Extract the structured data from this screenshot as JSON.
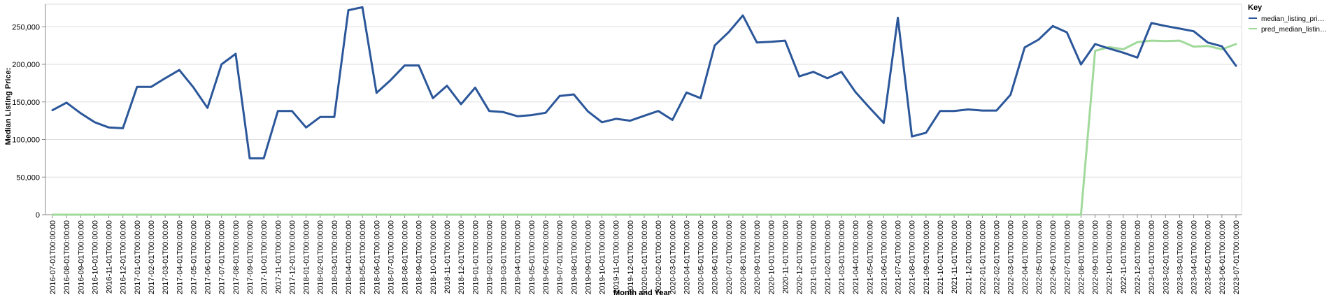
{
  "chart_data": {
    "type": "line",
    "xlabel": "Month and Year",
    "ylabel": "Median Listing Price:",
    "ylim": [
      0,
      280000
    ],
    "yticks": [
      0,
      50000,
      100000,
      150000,
      200000,
      250000
    ],
    "ytick_labels": [
      "0",
      "50,000",
      "100,000",
      "150,000",
      "200,000",
      "250,000"
    ],
    "grid": "horizontal",
    "legend": {
      "title": "Key",
      "placement": "top-right",
      "entries": [
        "median_listing_pri…",
        "pred_median_listin…"
      ]
    },
    "x": [
      "2016-07-01T00:00:00",
      "2016-08-01T00:00:00",
      "2016-09-01T00:00:00",
      "2016-10-01T00:00:00",
      "2016-11-01T00:00:00",
      "2016-12-01T00:00:00",
      "2017-01-01T00:00:00",
      "2017-02-01T00:00:00",
      "2017-03-01T00:00:00",
      "2017-04-01T00:00:00",
      "2017-05-01T00:00:00",
      "2017-06-01T00:00:00",
      "2017-07-01T00:00:00",
      "2017-08-01T00:00:00",
      "2017-09-01T00:00:00",
      "2017-10-01T00:00:00",
      "2017-11-01T00:00:00",
      "2017-12-01T00:00:00",
      "2018-01-01T00:00:00",
      "2018-02-01T00:00:00",
      "2018-03-01T00:00:00",
      "2018-04-01T00:00:00",
      "2018-05-01T00:00:00",
      "2018-06-01T00:00:00",
      "2018-07-01T00:00:00",
      "2018-08-01T00:00:00",
      "2018-09-01T00:00:00",
      "2018-10-01T00:00:00",
      "2018-11-01T00:00:00",
      "2018-12-01T00:00:00",
      "2019-01-01T00:00:00",
      "2019-02-01T00:00:00",
      "2019-03-01T00:00:00",
      "2019-04-01T00:00:00",
      "2019-05-01T00:00:00",
      "2019-06-01T00:00:00",
      "2019-07-01T00:00:00",
      "2019-08-01T00:00:00",
      "2019-09-01T00:00:00",
      "2019-10-01T00:00:00",
      "2019-11-01T00:00:00",
      "2019-12-01T00:00:00",
      "2020-01-01T00:00:00",
      "2020-02-01T00:00:00",
      "2020-03-01T00:00:00",
      "2020-04-01T00:00:00",
      "2020-05-01T00:00:00",
      "2020-06-01T00:00:00",
      "2020-07-01T00:00:00",
      "2020-08-01T00:00:00",
      "2020-09-01T00:00:00",
      "2020-10-01T00:00:00",
      "2020-11-01T00:00:00",
      "2020-12-01T00:00:00",
      "2021-01-01T00:00:00",
      "2021-02-01T00:00:00",
      "2021-03-01T00:00:00",
      "2021-04-01T00:00:00",
      "2021-05-01T00:00:00",
      "2021-06-01T00:00:00",
      "2021-07-01T00:00:00",
      "2021-08-01T00:00:00",
      "2021-09-01T00:00:00",
      "2021-10-01T00:00:00",
      "2021-11-01T00:00:00",
      "2021-12-01T00:00:00",
      "2022-01-01T00:00:00",
      "2022-02-01T00:00:00",
      "2022-03-01T00:00:00",
      "2022-04-01T00:00:00",
      "2022-05-01T00:00:00",
      "2022-06-01T00:00:00",
      "2022-07-01T00:00:00",
      "2022-08-01T00:00:00",
      "2022-09-01T00:00:00",
      "2022-10-01T00:00:00",
      "2022-11-01T00:00:00",
      "2022-12-01T00:00:00",
      "2023-01-01T00:00:00",
      "2023-02-01T00:00:00",
      "2023-03-01T00:00:00",
      "2023-04-01T00:00:00",
      "2023-05-01T00:00:00",
      "2023-06-01T00:00:00",
      "2023-07-01T00:00:00"
    ],
    "series": [
      {
        "name": "median_listing_pri…",
        "color": "#2b579a",
        "values": [
          139000,
          149000,
          135000,
          123000,
          116000,
          115000,
          170000,
          170000,
          181500,
          192500,
          169500,
          142000,
          200000,
          214000,
          75000,
          75000,
          138000,
          138000,
          116000,
          130000,
          130000,
          272000,
          276000,
          162000,
          179000,
          198500,
          198500,
          155000,
          171500,
          147000,
          169000,
          138000,
          136500,
          131000,
          132500,
          135500,
          158000,
          160000,
          137500,
          123000,
          127500,
          125000,
          131500,
          138000,
          126000,
          162500,
          155000,
          225000,
          243000,
          265000,
          229000,
          230000,
          231500,
          184000,
          190000,
          181500,
          190000,
          163000,
          142000,
          122000,
          262000,
          104000,
          109000,
          138000,
          138000,
          140000,
          138500,
          138500,
          159500,
          222500,
          233000,
          251000,
          242500,
          199900,
          227000,
          221000,
          215500,
          209000,
          255000,
          251000,
          247500,
          244000,
          229000,
          224000,
          198000
        ]
      },
      {
        "name": "pred_median_listin…",
        "color": "#a1d99b",
        "values": [
          0,
          0,
          0,
          0,
          0,
          0,
          0,
          0,
          0,
          0,
          0,
          0,
          0,
          0,
          0,
          0,
          0,
          0,
          0,
          0,
          0,
          0,
          0,
          0,
          0,
          0,
          0,
          0,
          0,
          0,
          0,
          0,
          0,
          0,
          0,
          0,
          0,
          0,
          0,
          0,
          0,
          0,
          0,
          0,
          0,
          0,
          0,
          0,
          0,
          0,
          0,
          0,
          0,
          0,
          0,
          0,
          0,
          0,
          0,
          0,
          0,
          0,
          0,
          0,
          0,
          0,
          0,
          0,
          0,
          0,
          0,
          0,
          0,
          0,
          218000,
          223000,
          220000,
          229500,
          231500,
          231000,
          231500,
          223500,
          224500,
          220000,
          227000
        ]
      }
    ]
  }
}
